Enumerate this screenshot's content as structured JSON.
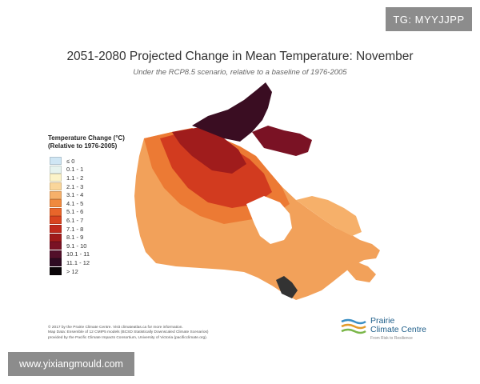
{
  "badge": "TG: MYYJJPP",
  "title": "2051-2080 Projected Change in Mean Temperature: November",
  "subtitle": "Under the RCP8.5 scenario, relative to a baseline of 1976-2005",
  "legend": {
    "title_line1": "Temperature Change (°C)",
    "title_line2": "(Relative to 1976-2005)",
    "items": [
      {
        "label": "≤ 0",
        "color": "#cfe6f4"
      },
      {
        "label": "0.1 - 1",
        "color": "#e6f3ee"
      },
      {
        "label": "1.1 - 2",
        "color": "#fbf3c8"
      },
      {
        "label": "2.1 - 3",
        "color": "#fad69a"
      },
      {
        "label": "3.1 - 4",
        "color": "#f6b06a"
      },
      {
        "label": "4.1 - 5",
        "color": "#f08a3e"
      },
      {
        "label": "5.1 - 6",
        "color": "#e8652a"
      },
      {
        "label": "6.1 - 7",
        "color": "#d9441f"
      },
      {
        "label": "7.1 - 8",
        "color": "#c12a1c"
      },
      {
        "label": "8.1 - 9",
        "color": "#9f1a1a"
      },
      {
        "label": "9.1 - 10",
        "color": "#7a1224"
      },
      {
        "label": "10.1 - 11",
        "color": "#52102a"
      },
      {
        "label": "11.1 - 12",
        "color": "#2e0b22"
      },
      {
        "label": "> 12",
        "color": "#0a0508"
      }
    ]
  },
  "credits": {
    "line1": "© 2017 by the Prairie Climate Centre. Visit climateatlas.ca for more information.",
    "line2": "Map Data: Ensemble of 12 CMIP5 models (BCSD Statistically Downscaled Climate Scenarios)",
    "line3": "provided by the Pacific Climate Impacts Consortium, University of Victoria (pacificclimate.org)."
  },
  "logo": {
    "name_line1": "Prairie",
    "name_line2": "Climate Centre",
    "tagline": "From Risk to Resilience",
    "colors": [
      "#3b8fc4",
      "#e39b2a",
      "#7ab648"
    ]
  },
  "watermark": "www.yixiangmould.com"
}
